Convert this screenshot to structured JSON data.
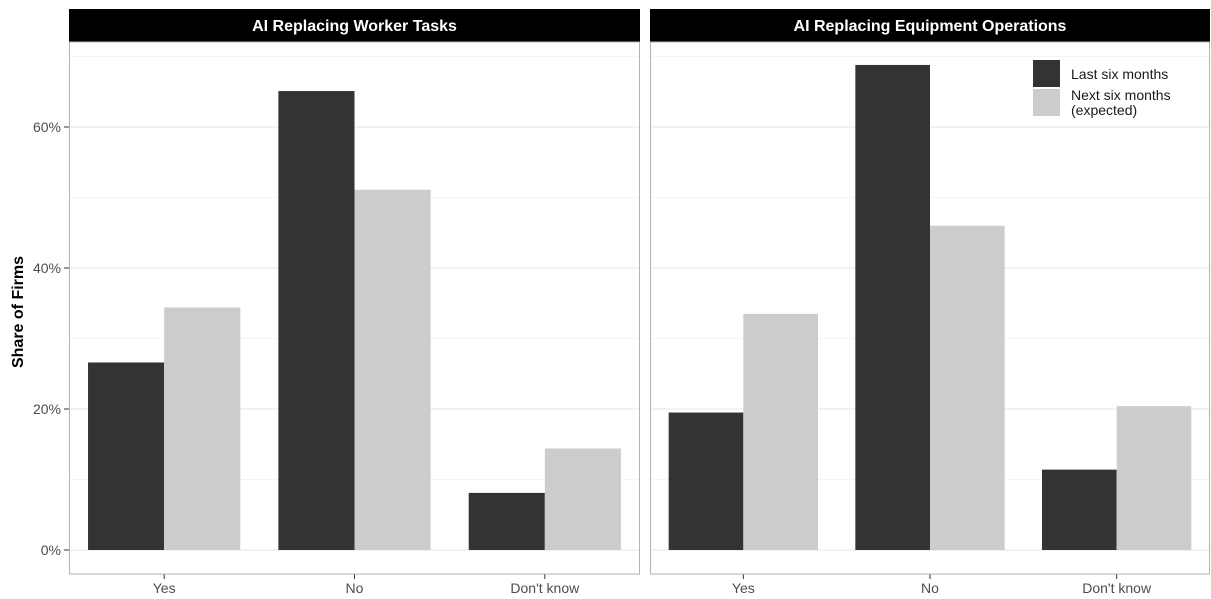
{
  "chart_data": {
    "type": "bar",
    "ylabel": "Share of Firms",
    "xlabel": "",
    "ylim": [
      0,
      72
    ],
    "yticks": [
      0,
      20,
      40,
      60
    ],
    "ytick_labels": [
      "0%",
      "20%",
      "40%",
      "60%"
    ],
    "categories": [
      "Yes",
      "No",
      "Don't know"
    ],
    "grid": true,
    "legend": {
      "placement": "top-right",
      "entries": [
        "Last six months",
        "Next six months\n(expected)"
      ]
    },
    "colors": {
      "last": "#333333",
      "next": "#cccccc",
      "strip": "#000000",
      "grid": "#ebebeb"
    },
    "panels": [
      {
        "title": "AI Replacing Worker Tasks",
        "series": [
          {
            "name": "Last six months",
            "values": [
              26.6,
              65.1,
              8.1
            ]
          },
          {
            "name": "Next six months (expected)",
            "values": [
              34.4,
              51.1,
              14.4
            ]
          }
        ]
      },
      {
        "title": "AI Replacing Equipment Operations",
        "series": [
          {
            "name": "Last six months",
            "values": [
              19.5,
              68.8,
              11.4
            ]
          },
          {
            "name": "Next six months (expected)",
            "values": [
              33.5,
              46.0,
              20.4
            ]
          }
        ]
      }
    ]
  }
}
